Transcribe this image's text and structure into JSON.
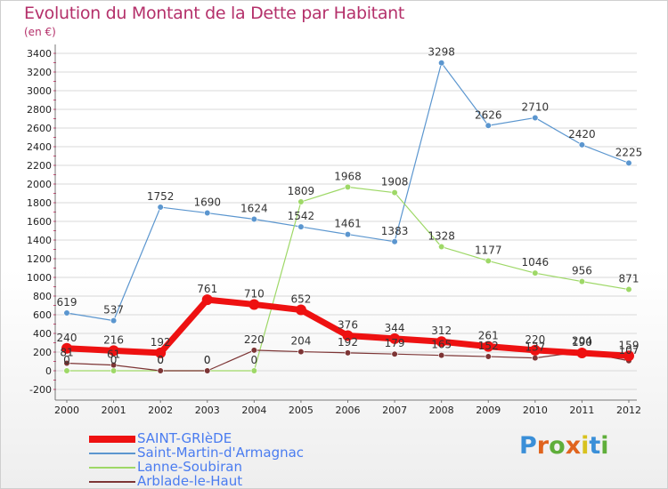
{
  "header": {
    "title": "Evolution du Montant de la Dette par Habitant",
    "subtitle": "(en €)"
  },
  "logo": {
    "letters": [
      "P",
      "r",
      "o",
      "x",
      "i",
      "t",
      "i"
    ],
    "colors": [
      "#3a8fd8",
      "#e0641e",
      "#5fae3a",
      "#e0641e",
      "#d8c21e",
      "#3a8fd8",
      "#5fae3a"
    ]
  },
  "colors": {
    "title": "#b4306a",
    "legend_text": "#4a7cf0",
    "grid": "#d8d8d8",
    "axis": "#777777"
  },
  "chart_data": {
    "type": "line",
    "x": [
      "2000",
      "2001",
      "2002",
      "2003",
      "2004",
      "2005",
      "2006",
      "2007",
      "2008",
      "2009",
      "2010",
      "2011",
      "2012"
    ],
    "ylim": [
      -200,
      3400
    ],
    "yticks": [
      "-200",
      "0",
      "200",
      "400",
      "600",
      "800",
      "1000",
      "1200",
      "1400",
      "1600",
      "1800",
      "2000",
      "2200",
      "2400",
      "2600",
      "2800",
      "3000",
      "3200",
      "3400"
    ],
    "grid": "horizontal",
    "legend_position": "bottom-left",
    "series": [
      {
        "name": "SAINT-GRIèDE",
        "color": "#ee1111",
        "values": [
          240,
          216,
          192,
          761,
          710,
          652,
          376,
          344,
          312,
          261,
          220,
          190,
          159
        ],
        "labels": [
          "240",
          "216",
          "192",
          "761",
          "710",
          "652",
          "376",
          "344",
          "312",
          "261",
          "220",
          "190",
          "159"
        ]
      },
      {
        "name": "Saint-Martin-d'Armagnac",
        "color": "#5b96cf",
        "values": [
          619,
          537,
          1752,
          1690,
          1624,
          1542,
          1461,
          1383,
          3298,
          2626,
          2710,
          2420,
          2225
        ],
        "labels": [
          "619",
          "537",
          "1752",
          "1690",
          "1624",
          "1542",
          "1461",
          "1383",
          "3298",
          "2626",
          "2710",
          "2420",
          "2225"
        ]
      },
      {
        "name": "Lanne-Soubiran",
        "color": "#9ed867",
        "values": [
          0,
          0,
          0,
          0,
          0,
          1809,
          1968,
          1908,
          1328,
          1177,
          1046,
          956,
          871
        ],
        "labels": [
          "0",
          "0",
          "0",
          "0",
          "0",
          "1809",
          "1968",
          "1908",
          "1328",
          "1177",
          "1046",
          "956",
          "871"
        ]
      },
      {
        "name": "Arblade-le-Haut",
        "color": "#7d3535",
        "values": [
          81,
          61,
          0,
          0,
          220,
          204,
          192,
          179,
          165,
          152,
          137,
          204,
          107
        ],
        "labels": [
          "81",
          "61",
          "0",
          "0",
          "220",
          "204",
          "192",
          "179",
          "165",
          "152",
          "137",
          "204",
          "107"
        ]
      }
    ]
  }
}
